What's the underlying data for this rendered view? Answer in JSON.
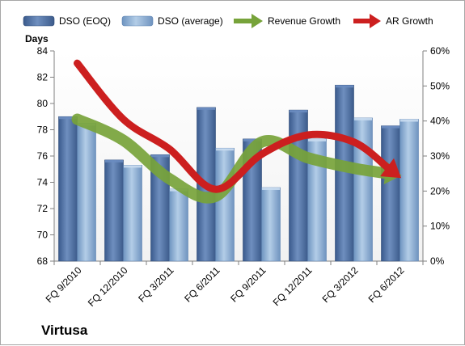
{
  "company": "Virtusa",
  "chart_data": {
    "type": "bar",
    "categories": [
      "FQ 9/2010",
      "FQ 12/2010",
      "FQ 3/2011",
      "FQ 6/2011",
      "FQ 9/2011",
      "FQ 12/2011",
      "FQ 3/2012",
      "FQ 6/2012"
    ],
    "y_left": {
      "label": "Days",
      "min": 68,
      "max": 84,
      "ticks": [
        68,
        70,
        72,
        74,
        76,
        78,
        80,
        82,
        84
      ]
    },
    "y_right": {
      "min": 0,
      "max": 60,
      "ticks": [
        "0%",
        "10%",
        "20%",
        "30%",
        "40%",
        "50%",
        "60%"
      ]
    },
    "series": [
      {
        "name": "DSO (EOQ)",
        "type": "bar",
        "axis": "left",
        "color": "#4f6fa0",
        "values": [
          79.0,
          75.7,
          76.1,
          79.7,
          77.3,
          79.5,
          81.4,
          78.3
        ]
      },
      {
        "name": "DSO (average)",
        "type": "bar",
        "axis": "left",
        "color": "#8fb2d6",
        "values": [
          78.5,
          75.3,
          73.5,
          76.6,
          73.6,
          77.3,
          78.9,
          78.8
        ]
      },
      {
        "name": "Revenue Growth",
        "type": "arrow-line",
        "axis": "right",
        "color": "#77a33a",
        "values": [
          40.5,
          34.5,
          23.5,
          18.5,
          34.0,
          29.5,
          26.5,
          24.5
        ]
      },
      {
        "name": "AR Growth",
        "type": "arrow-line",
        "axis": "right",
        "color": "#cc1f1f",
        "values": [
          56.5,
          40.5,
          32.0,
          20.5,
          30.5,
          36.0,
          34.0,
          24.0
        ]
      }
    ],
    "legend": "top",
    "grid": false
  }
}
